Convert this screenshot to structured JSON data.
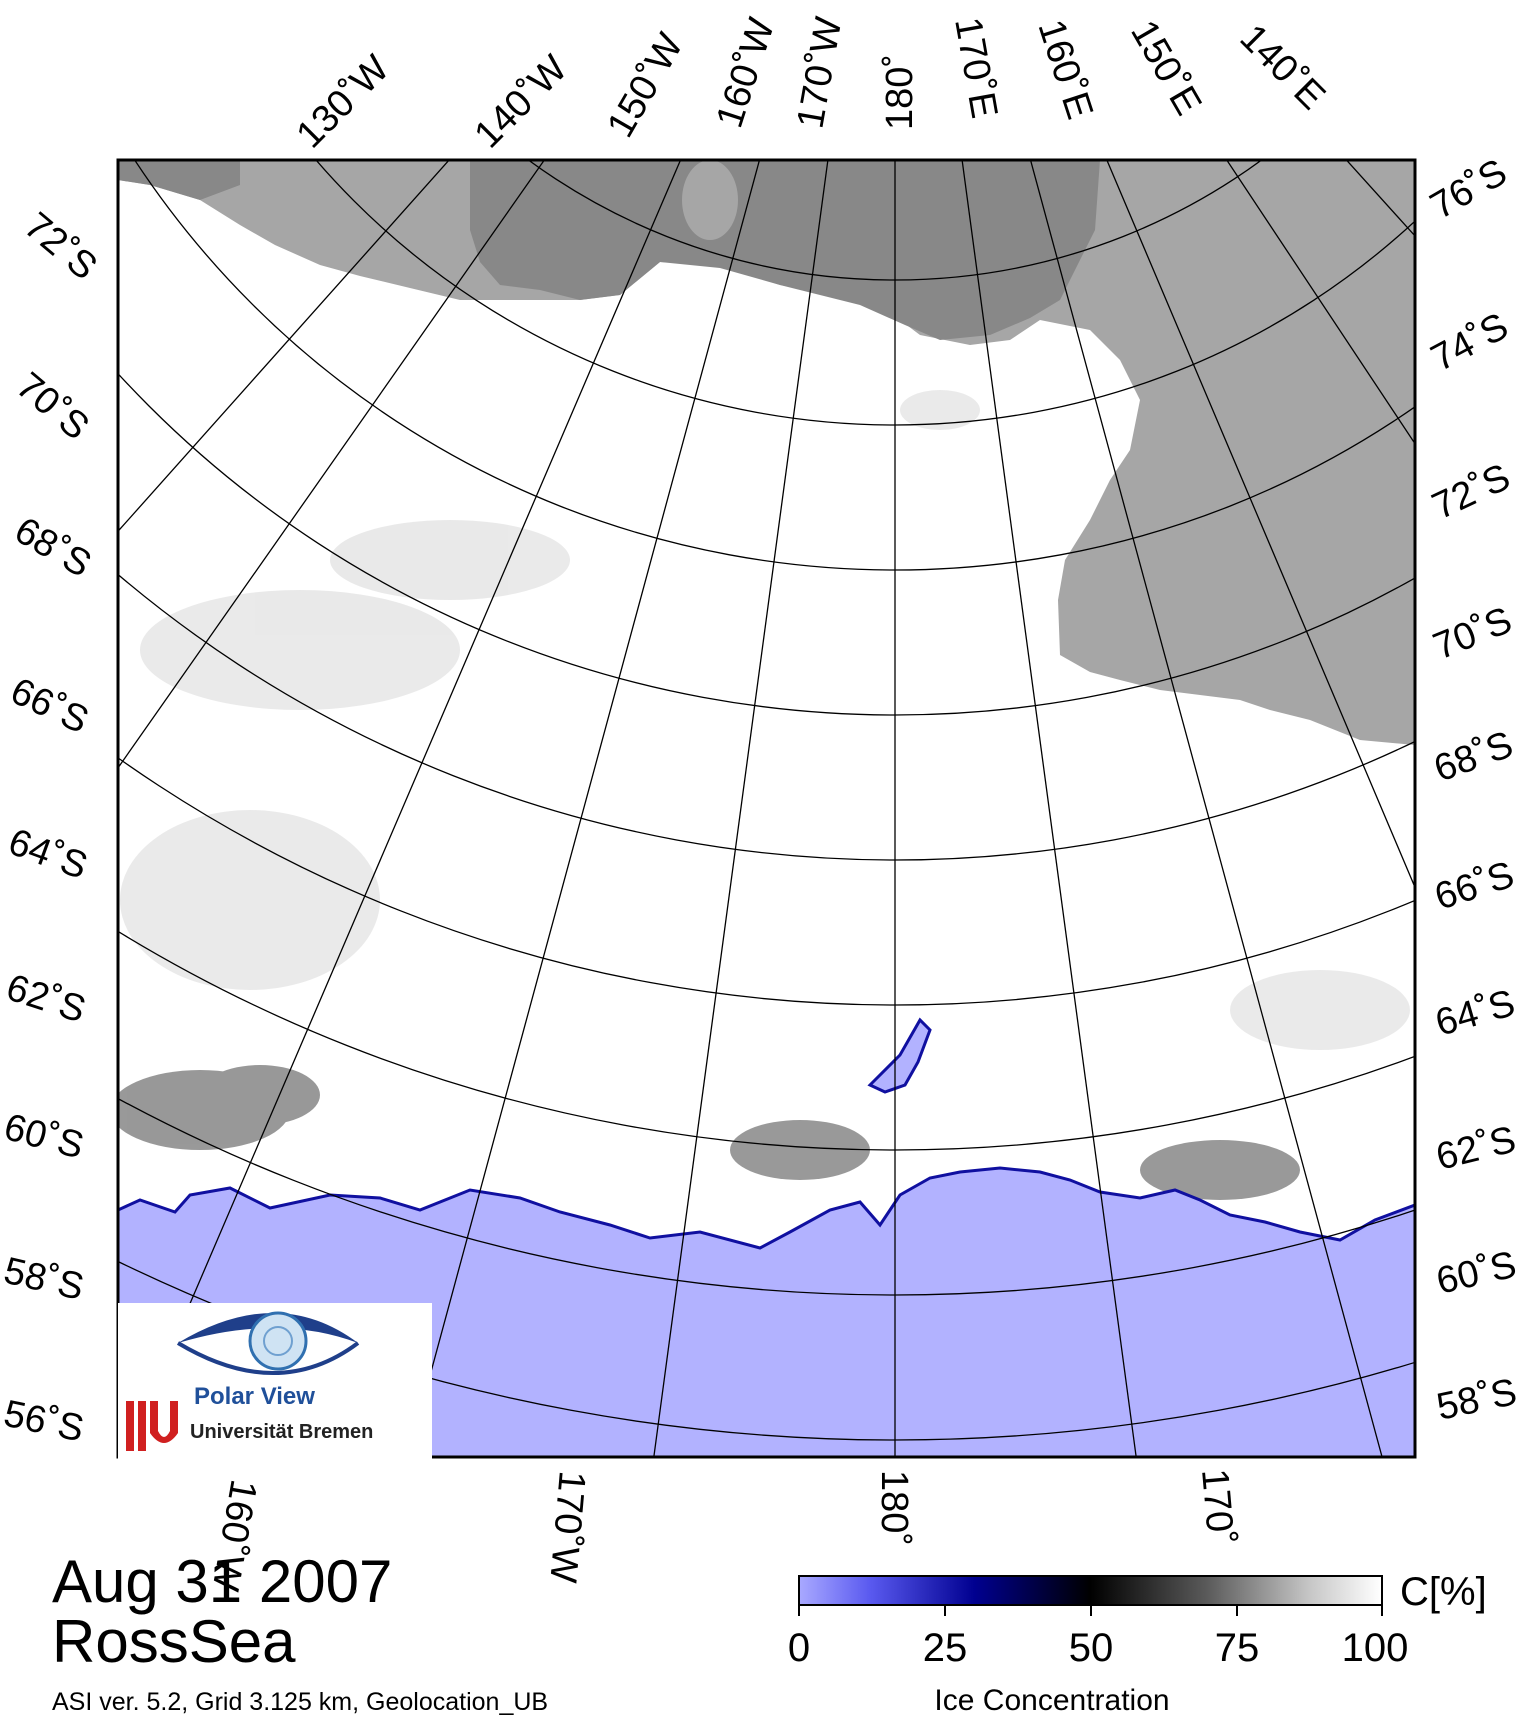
{
  "title": {
    "date": "Aug 31 2007",
    "region": "RossSea",
    "meta": "ASI ver. 5.2,  Grid 3.125 km, Geolocation_UB"
  },
  "map": {
    "latitude_labels_left": [
      "72˚S",
      "70˚S",
      "68˚S",
      "66˚S",
      "64˚S",
      "62˚S",
      "60˚S",
      "58˚S",
      "56˚S"
    ],
    "latitude_labels_right": [
      "76˚S",
      "74˚S",
      "72˚S",
      "70˚S",
      "68˚S",
      "66˚S",
      "64˚S",
      "62˚S",
      "60˚S",
      "58˚S"
    ],
    "longitude_labels_top": [
      "130˚W",
      "140˚W",
      "150˚W",
      "160˚W",
      "170˚W",
      "180˚",
      "170˚E",
      "160˚E",
      "150˚E",
      "140˚E"
    ],
    "longitude_labels_bottom": [
      "160˚W",
      "170˚W",
      "180˚",
      "170˚"
    ],
    "colors": {
      "land": "#a6a6a6",
      "ice_shelf": "#888888",
      "ocean": "#b2b2ff",
      "ice": "#ffffff"
    }
  },
  "legend": {
    "ticks": [
      "0",
      "25",
      "50",
      "75",
      "100"
    ],
    "unit": "C[%]",
    "title": "Ice Concentration"
  },
  "logo": {
    "name": "Polar View",
    "institution": "Universität Bremen",
    "icon": "eye-globe-icon"
  }
}
